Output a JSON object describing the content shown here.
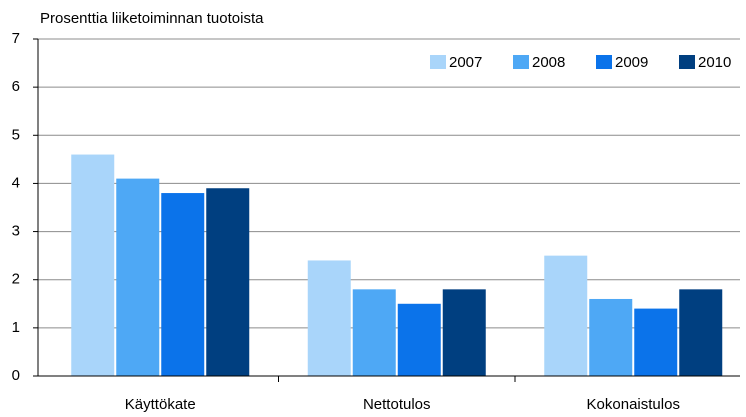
{
  "chart_data": {
    "type": "bar",
    "title": "Prosenttia liiketoiminnan tuotoista",
    "categories": [
      "Käyttökate",
      "Nettotulos",
      "Kokonaistulos"
    ],
    "series": [
      {
        "name": "2007",
        "color": "#a9d5fa",
        "values": [
          4.6,
          2.4,
          2.5
        ]
      },
      {
        "name": "2008",
        "color": "#4ea8f5",
        "values": [
          4.1,
          1.8,
          1.6
        ]
      },
      {
        "name": "2009",
        "color": "#0b73ea",
        "values": [
          3.8,
          1.5,
          1.4
        ]
      },
      {
        "name": "2010",
        "color": "#003f80",
        "values": [
          3.9,
          1.8,
          1.8
        ]
      }
    ],
    "ylim": [
      0,
      7
    ],
    "yticks": [
      0,
      1,
      2,
      3,
      4,
      5,
      6,
      7
    ],
    "grid": true,
    "legend": "upper right"
  }
}
